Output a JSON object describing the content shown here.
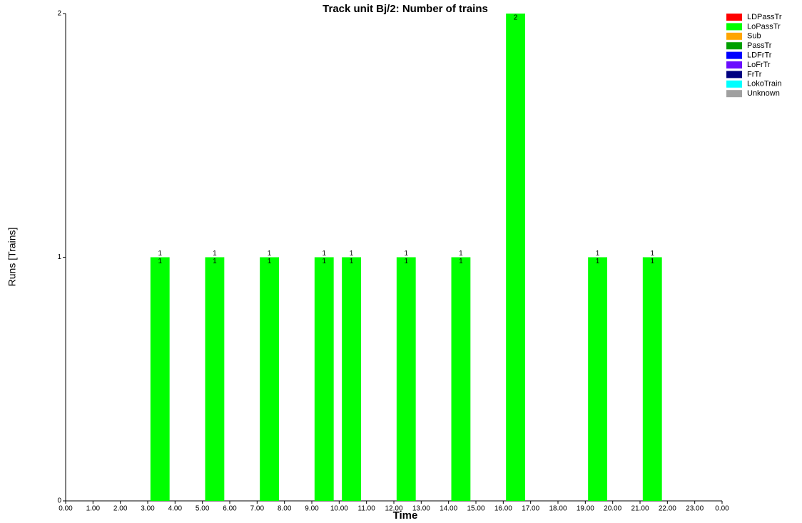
{
  "chart_data": {
    "type": "bar",
    "title": "Track unit Bj/2: Number of trains",
    "x_label": "Time",
    "y_label": "Runs [Trains]",
    "x": [
      3,
      5,
      7,
      9,
      10,
      12,
      14,
      16,
      19,
      21
    ],
    "series": [
      {
        "name": "LoPassTr",
        "color": "#00ff00",
        "values": [
          1,
          1,
          1,
          1,
          1,
          1,
          1,
          2,
          1,
          1
        ]
      }
    ],
    "totals": [
      1,
      1,
      1,
      1,
      1,
      1,
      1,
      null,
      1,
      1
    ],
    "legend": [
      {
        "name": "LDPassTr",
        "color": "#ff0000"
      },
      {
        "name": "LoPassTr",
        "color": "#00ff00"
      },
      {
        "name": "Sub",
        "color": "#ffa500"
      },
      {
        "name": "PassTr",
        "color": "#00a000"
      },
      {
        "name": "LDFrTr",
        "color": "#0000ff"
      },
      {
        "name": "LoFrTr",
        "color": "#6a0dff"
      },
      {
        "name": "FrTr",
        "color": "#000080"
      },
      {
        "name": "LokoTrain",
        "color": "#00ffff"
      },
      {
        "name": "Unknown",
        "color": "#a0a0a0"
      }
    ],
    "xlim": [
      0,
      24
    ],
    "xticks": [
      {
        "value": 0,
        "label": "0.00"
      },
      {
        "value": 1,
        "label": "1.00"
      },
      {
        "value": 2,
        "label": "2.00"
      },
      {
        "value": 3,
        "label": "3.00"
      },
      {
        "value": 4,
        "label": "4.00"
      },
      {
        "value": 5,
        "label": "5.00"
      },
      {
        "value": 6,
        "label": "6.00"
      },
      {
        "value": 7,
        "label": "7.00"
      },
      {
        "value": 8,
        "label": "8.00"
      },
      {
        "value": 9,
        "label": "9.00"
      },
      {
        "value": 10,
        "label": "10.00"
      },
      {
        "value": 11,
        "label": "11.00"
      },
      {
        "value": 12,
        "label": "12.00"
      },
      {
        "value": 13,
        "label": "13.00"
      },
      {
        "value": 14,
        "label": "14.00"
      },
      {
        "value": 15,
        "label": "15.00"
      },
      {
        "value": 16,
        "label": "16.00"
      },
      {
        "value": 17,
        "label": "17.00"
      },
      {
        "value": 18,
        "label": "18.00"
      },
      {
        "value": 19,
        "label": "19.00"
      },
      {
        "value": 20,
        "label": "20.00"
      },
      {
        "value": 21,
        "label": "21.00"
      },
      {
        "value": 22,
        "label": "22.00"
      },
      {
        "value": 23,
        "label": "23.00"
      },
      {
        "value": 24,
        "label": "0.00"
      }
    ],
    "ylim": [
      0,
      2
    ],
    "yticks": [
      0,
      1,
      2
    ]
  }
}
